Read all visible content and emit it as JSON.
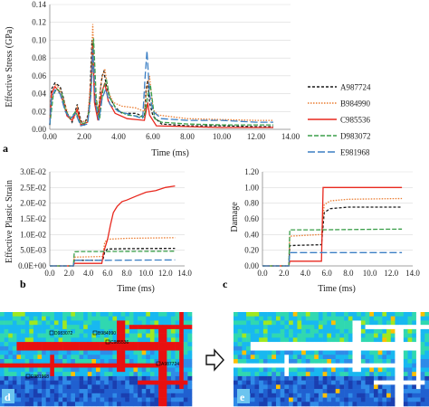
{
  "series_styles": [
    {
      "name": "A987724",
      "color": "#1a1a1a",
      "dash": "3,2"
    },
    {
      "name": "B984990",
      "color": "#ea7c30",
      "dash": "1.5,1.5"
    },
    {
      "name": "C985536",
      "color": "#e8281e",
      "dash": ""
    },
    {
      "name": "D983072",
      "color": "#3b9f4a",
      "dash": "5,2"
    },
    {
      "name": "E981968",
      "color": "#3b7fc4",
      "dash": "8,3"
    }
  ],
  "chart_data": [
    {
      "panel": "a",
      "type": "line",
      "xlabel": "Time (ms)",
      "ylabel": "Effective Stress (GPa)",
      "xlim": [
        0,
        14
      ],
      "ylim": [
        0,
        0.14
      ],
      "xticks": [
        "0.00",
        "2.00",
        "4.00",
        "6.00",
        "8.00",
        "10.00",
        "12.00",
        "14.00"
      ],
      "yticks": [
        "0.00",
        "0.02",
        "0.04",
        "0.06",
        "0.08",
        "0.10",
        "0.12",
        "0.14"
      ],
      "legend": "right",
      "series": [
        {
          "name": "A987724",
          "points": [
            [
              0,
              0.005
            ],
            [
              0.1,
              0.045
            ],
            [
              0.3,
              0.052
            ],
            [
              0.6,
              0.048
            ],
            [
              0.8,
              0.035
            ],
            [
              1.0,
              0.018
            ],
            [
              1.3,
              0.008
            ],
            [
              1.6,
              0.028
            ],
            [
              1.8,
              0.01
            ],
            [
              2.0,
              0.005
            ],
            [
              2.3,
              0.02
            ],
            [
              2.45,
              0.1
            ],
            [
              2.6,
              0.04
            ],
            [
              2.8,
              0.012
            ],
            [
              2.95,
              0.045
            ],
            [
              3.05,
              0.06
            ],
            [
              3.15,
              0.065
            ],
            [
              3.3,
              0.048
            ],
            [
              3.5,
              0.035
            ],
            [
              3.8,
              0.025
            ],
            [
              4.2,
              0.018
            ],
            [
              5.0,
              0.018
            ],
            [
              5.5,
              0.014
            ],
            [
              5.6,
              0.045
            ],
            [
              5.7,
              0.055
            ],
            [
              5.8,
              0.03
            ],
            [
              6.0,
              0.015
            ],
            [
              6.5,
              0.006
            ],
            [
              8,
              0.004
            ],
            [
              10,
              0.004
            ],
            [
              12,
              0.003
            ],
            [
              13,
              0.003
            ]
          ]
        },
        {
          "name": "B984990",
          "points": [
            [
              0,
              0.005
            ],
            [
              0.15,
              0.042
            ],
            [
              0.35,
              0.05
            ],
            [
              0.6,
              0.045
            ],
            [
              0.85,
              0.03
            ],
            [
              1.1,
              0.015
            ],
            [
              1.4,
              0.012
            ],
            [
              1.6,
              0.025
            ],
            [
              1.8,
              0.008
            ],
            [
              2.2,
              0.01
            ],
            [
              2.4,
              0.06
            ],
            [
              2.5,
              0.118
            ],
            [
              2.6,
              0.05
            ],
            [
              2.8,
              0.015
            ],
            [
              3.0,
              0.055
            ],
            [
              3.2,
              0.068
            ],
            [
              3.4,
              0.042
            ],
            [
              3.7,
              0.03
            ],
            [
              4.2,
              0.026
            ],
            [
              5.0,
              0.024
            ],
            [
              5.5,
              0.02
            ],
            [
              5.65,
              0.048
            ],
            [
              5.8,
              0.06
            ],
            [
              6.0,
              0.022
            ],
            [
              6.3,
              0.016
            ],
            [
              8,
              0.012
            ],
            [
              10,
              0.011
            ],
            [
              12,
              0.01
            ],
            [
              13,
              0.01
            ]
          ]
        },
        {
          "name": "C985536",
          "points": [
            [
              0,
              0.005
            ],
            [
              0.1,
              0.04
            ],
            [
              0.3,
              0.048
            ],
            [
              0.55,
              0.042
            ],
            [
              0.8,
              0.03
            ],
            [
              1.0,
              0.015
            ],
            [
              1.3,
              0.01
            ],
            [
              1.6,
              0.022
            ],
            [
              1.8,
              0.005
            ],
            [
              2.2,
              0.008
            ],
            [
              2.4,
              0.05
            ],
            [
              2.5,
              0.095
            ],
            [
              2.6,
              0.03
            ],
            [
              2.8,
              0.01
            ],
            [
              3.0,
              0.04
            ],
            [
              3.2,
              0.052
            ],
            [
              3.4,
              0.032
            ],
            [
              3.8,
              0.018
            ],
            [
              4.5,
              0.012
            ],
            [
              5.5,
              0.01
            ],
            [
              5.7,
              0.03
            ],
            [
              5.8,
              0.016
            ],
            [
              6.2,
              0.004
            ],
            [
              8,
              0.003
            ],
            [
              10,
              0.002
            ],
            [
              12,
              0.002
            ],
            [
              13,
              0.002
            ]
          ]
        },
        {
          "name": "D983072",
          "points": [
            [
              0,
              0.005
            ],
            [
              0.2,
              0.038
            ],
            [
              0.4,
              0.046
            ],
            [
              0.7,
              0.04
            ],
            [
              0.9,
              0.022
            ],
            [
              1.2,
              0.012
            ],
            [
              1.5,
              0.02
            ],
            [
              1.8,
              0.006
            ],
            [
              2.2,
              0.008
            ],
            [
              2.4,
              0.045
            ],
            [
              2.55,
              0.102
            ],
            [
              2.7,
              0.035
            ],
            [
              2.9,
              0.012
            ],
            [
              3.1,
              0.045
            ],
            [
              3.3,
              0.055
            ],
            [
              3.5,
              0.035
            ],
            [
              3.9,
              0.022
            ],
            [
              4.5,
              0.016
            ],
            [
              5.5,
              0.014
            ],
            [
              5.7,
              0.038
            ],
            [
              5.85,
              0.05
            ],
            [
              6.1,
              0.012
            ],
            [
              6.5,
              0.008
            ],
            [
              8,
              0.006
            ],
            [
              10,
              0.005
            ],
            [
              12,
              0.005
            ],
            [
              13,
              0.005
            ]
          ]
        },
        {
          "name": "E981968",
          "points": [
            [
              0,
              0.005
            ],
            [
              0.1,
              0.035
            ],
            [
              0.3,
              0.044
            ],
            [
              0.6,
              0.04
            ],
            [
              0.9,
              0.02
            ],
            [
              1.2,
              0.012
            ],
            [
              1.5,
              0.018
            ],
            [
              1.8,
              0.004
            ],
            [
              2.2,
              0.006
            ],
            [
              2.4,
              0.04
            ],
            [
              2.5,
              0.09
            ],
            [
              2.65,
              0.03
            ],
            [
              2.85,
              0.01
            ],
            [
              3.05,
              0.035
            ],
            [
              3.25,
              0.045
            ],
            [
              3.5,
              0.028
            ],
            [
              4.0,
              0.02
            ],
            [
              4.8,
              0.016
            ],
            [
              5.4,
              0.012
            ],
            [
              5.55,
              0.06
            ],
            [
              5.65,
              0.088
            ],
            [
              5.8,
              0.04
            ],
            [
              6.0,
              0.02
            ],
            [
              6.5,
              0.012
            ],
            [
              8,
              0.01
            ],
            [
              10,
              0.01
            ],
            [
              12,
              0.008
            ],
            [
              13,
              0.008
            ]
          ]
        }
      ]
    },
    {
      "panel": "b",
      "type": "line",
      "xlabel": "Time (ms)",
      "ylabel": "Effective Plastic Strain",
      "xlim": [
        0,
        14
      ],
      "ylim": [
        0,
        0.03
      ],
      "xticks": [
        "0.0",
        "2.0",
        "4.0",
        "6.0",
        "8.0",
        "10.0",
        "12.0",
        "14.0"
      ],
      "yticks": [
        "0.0E+00",
        "5.0E-03",
        "1.0E-02",
        "1.5E-02",
        "2.0E-02",
        "2.5E-02",
        "3.0E-02"
      ],
      "series": [
        {
          "name": "A987724",
          "points": [
            [
              0,
              0
            ],
            [
              2.45,
              0
            ],
            [
              2.55,
              0.0018
            ],
            [
              5.5,
              0.0018
            ],
            [
              5.7,
              0.0045
            ],
            [
              6.0,
              0.0054
            ],
            [
              8,
              0.0055
            ],
            [
              13,
              0.0056
            ]
          ]
        },
        {
          "name": "B984990",
          "points": [
            [
              0,
              0
            ],
            [
              2.45,
              0
            ],
            [
              2.55,
              0.0028
            ],
            [
              5.5,
              0.003
            ],
            [
              5.7,
              0.0075
            ],
            [
              6.0,
              0.0085
            ],
            [
              8,
              0.0088
            ],
            [
              13,
              0.009
            ]
          ]
        },
        {
          "name": "C985536",
          "points": [
            [
              0,
              0
            ],
            [
              2.45,
              0
            ],
            [
              2.55,
              0.0008
            ],
            [
              5.4,
              0.0008
            ],
            [
              5.6,
              0.0045
            ],
            [
              6.0,
              0.0085
            ],
            [
              6.3,
              0.013
            ],
            [
              6.6,
              0.017
            ],
            [
              7.0,
              0.019
            ],
            [
              7.5,
              0.0205
            ],
            [
              8,
              0.021
            ],
            [
              9,
              0.0223
            ],
            [
              10,
              0.0235
            ],
            [
              11,
              0.024
            ],
            [
              12,
              0.025
            ],
            [
              13,
              0.0255
            ]
          ]
        },
        {
          "name": "D983072",
          "points": [
            [
              0,
              0
            ],
            [
              2.45,
              0
            ],
            [
              2.55,
              0.0045
            ],
            [
              3.2,
              0.0046
            ],
            [
              5.0,
              0.0046
            ],
            [
              13,
              0.0047
            ]
          ]
        },
        {
          "name": "E981968",
          "points": [
            [
              0,
              0
            ],
            [
              2.45,
              0
            ],
            [
              2.55,
              0.0018
            ],
            [
              5.5,
              0.0018
            ],
            [
              5.65,
              0.0018
            ],
            [
              13,
              0.0019
            ]
          ]
        }
      ]
    },
    {
      "panel": "c",
      "type": "line",
      "xlabel": "Time (ms)",
      "ylabel": "Damage",
      "xlim": [
        0,
        14
      ],
      "ylim": [
        0,
        1.2
      ],
      "xticks": [
        "0.0",
        "2.0",
        "4.0",
        "6.0",
        "8.0",
        "10.0",
        "12.0",
        "14.0"
      ],
      "yticks": [
        "0.00",
        "0.20",
        "0.40",
        "0.60",
        "0.80",
        "1.00",
        "1.20"
      ],
      "series": [
        {
          "name": "A987724",
          "points": [
            [
              0,
              0
            ],
            [
              2.45,
              0
            ],
            [
              2.55,
              0.26
            ],
            [
              5.5,
              0.27
            ],
            [
              5.75,
              0.68
            ],
            [
              6.3,
              0.73
            ],
            [
              8,
              0.75
            ],
            [
              13,
              0.75
            ]
          ]
        },
        {
          "name": "B984990",
          "points": [
            [
              0,
              0
            ],
            [
              2.45,
              0
            ],
            [
              2.55,
              0.38
            ],
            [
              5.5,
              0.4
            ],
            [
              5.75,
              0.78
            ],
            [
              6.3,
              0.83
            ],
            [
              8,
              0.85
            ],
            [
              13,
              0.86
            ]
          ]
        },
        {
          "name": "C985536",
          "points": [
            [
              0,
              0
            ],
            [
              2.45,
              0
            ],
            [
              2.55,
              0.06
            ],
            [
              5.5,
              0.06
            ],
            [
              5.65,
              1.0
            ],
            [
              13,
              1.0
            ]
          ]
        },
        {
          "name": "D983072",
          "points": [
            [
              0,
              0
            ],
            [
              2.45,
              0
            ],
            [
              2.55,
              0.46
            ],
            [
              5.0,
              0.46
            ],
            [
              13,
              0.47
            ]
          ]
        },
        {
          "name": "E981968",
          "points": [
            [
              0,
              0
            ],
            [
              2.45,
              0
            ],
            [
              2.55,
              0.17
            ],
            [
              13,
              0.17
            ]
          ]
        }
      ]
    }
  ],
  "panel_labels": {
    "a": "a",
    "b": "b",
    "c": "c",
    "d": "d",
    "e": "e"
  },
  "damage_maps": {
    "palette": [
      "#ffffff",
      "#ffc000",
      "#a0e820",
      "#30d8b0",
      "#18b8f0",
      "#2f8be8",
      "#2060d0",
      "#1a3fb0"
    ],
    "crack_color": "#e81010",
    "labels": [
      "D983072",
      "B984990",
      "C985536",
      "A987724",
      "E981968"
    ]
  }
}
